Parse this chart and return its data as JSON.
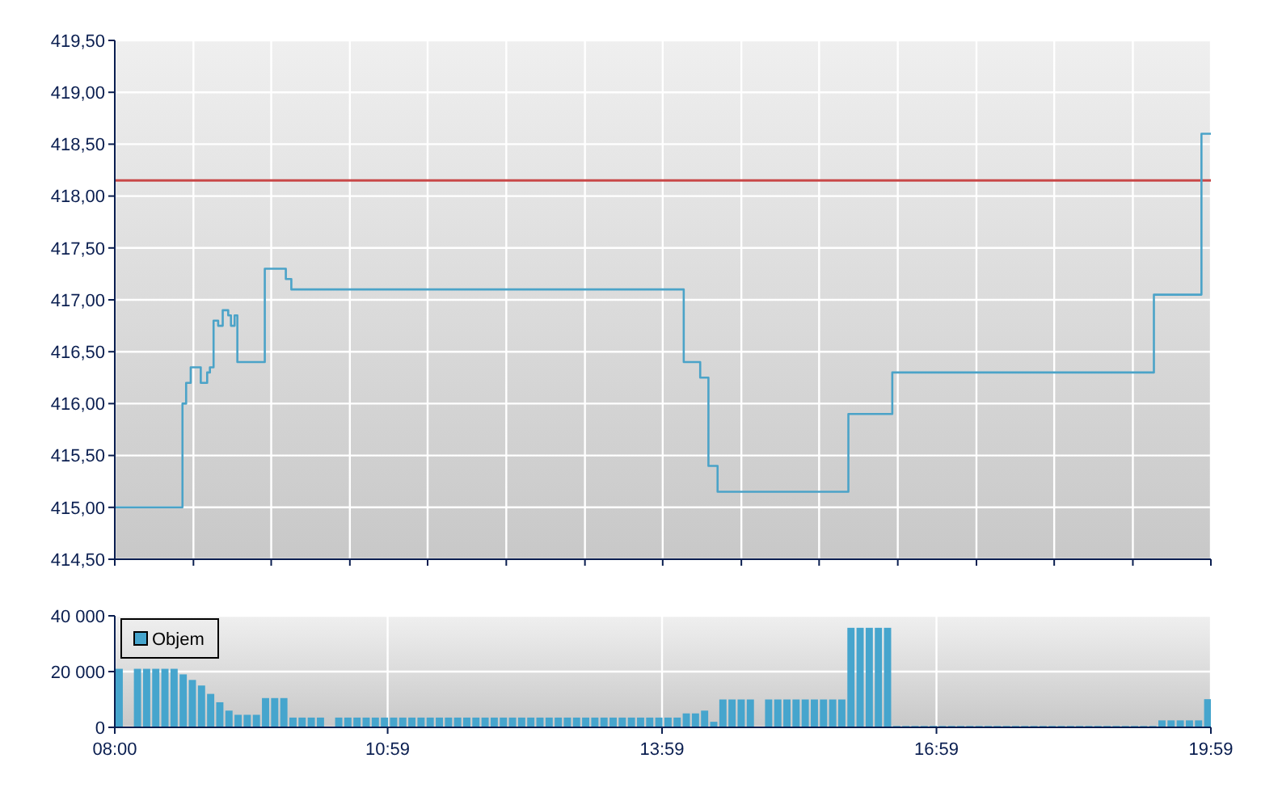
{
  "chart_data": [
    {
      "type": "step",
      "xlim": [
        8,
        19.983
      ],
      "xticks": [
        {
          "value": 8,
          "label": null
        },
        {
          "value": 8.86,
          "label": null
        },
        {
          "value": 9.71,
          "label": null
        },
        {
          "value": 10.57,
          "label": null
        },
        {
          "value": 11.42,
          "label": null
        },
        {
          "value": 12.28,
          "label": null
        },
        {
          "value": 13.14,
          "label": null
        },
        {
          "value": 13.99,
          "label": null
        },
        {
          "value": 14.85,
          "label": null
        },
        {
          "value": 15.7,
          "label": null
        },
        {
          "value": 16.56,
          "label": null
        },
        {
          "value": 17.42,
          "label": null
        },
        {
          "value": 18.27,
          "label": null
        },
        {
          "value": 19.13,
          "label": null
        },
        {
          "value": 19.983,
          "label": null
        }
      ],
      "ylim": [
        414.5,
        419.5
      ],
      "yticks": [
        {
          "value": 414.5,
          "label": "414,50"
        },
        {
          "value": 415,
          "label": "415,00"
        },
        {
          "value": 415.5,
          "label": "415,50"
        },
        {
          "value": 416,
          "label": "416,00"
        },
        {
          "value": 416.5,
          "label": "416,50"
        },
        {
          "value": 417,
          "label": "417,00"
        },
        {
          "value": 417.5,
          "label": "417,50"
        },
        {
          "value": 418,
          "label": "418,00"
        },
        {
          "value": 418.5,
          "label": "418,50"
        },
        {
          "value": 419,
          "label": "419,00"
        },
        {
          "value": 419.5,
          "label": "419,50"
        }
      ],
      "grid": true,
      "tick_labels": "y",
      "ref_lines": [
        {
          "axis": "y",
          "value": 418.15,
          "color": "#c84848"
        }
      ],
      "series": [
        {
          "color": "#4ba3c8",
          "x": [
            8,
            8.69,
            8.74,
            8.78,
            8.83,
            8.94,
            9.01,
            9.04,
            9.08,
            9.13,
            9.18,
            9.24,
            9.27,
            9.31,
            9.34,
            9.64,
            9.87,
            9.89,
            9.93,
            14.22,
            14.4,
            14.45,
            14.49,
            14.59,
            16.02,
            16.5,
            19.36,
            19.88,
            19.983
          ],
          "values": [
            415,
            415,
            416,
            416.2,
            416.35,
            416.2,
            416.3,
            416.35,
            416.8,
            416.75,
            416.9,
            416.85,
            416.75,
            416.85,
            416.4,
            417.3,
            417.2,
            417.2,
            417.1,
            416.4,
            416.25,
            416.25,
            415.4,
            415.15,
            415.9,
            416.3,
            417.05,
            418.6,
            418.6
          ]
        }
      ]
    },
    {
      "type": "bar",
      "xlim": [
        8,
        19.983
      ],
      "xticks": [
        {
          "value": 8,
          "label": "08:00"
        },
        {
          "value": 10.983,
          "label": "10:59"
        },
        {
          "value": 13.983,
          "label": "13:59"
        },
        {
          "value": 16.983,
          "label": "16:59"
        },
        {
          "value": 19.983,
          "label": "19:59"
        }
      ],
      "ylim": [
        0,
        40000
      ],
      "yticks": [
        {
          "value": 0,
          "label": "0"
        },
        {
          "value": 20000,
          "label": "20 000"
        },
        {
          "value": 40000,
          "label": "40 000"
        }
      ],
      "grid": true,
      "legend": "top left",
      "series": [
        {
          "name": "Objem",
          "color": "#46a5cd",
          "x": [
            8.05,
            8.15,
            8.25,
            8.35,
            8.45,
            8.55,
            8.65,
            8.75,
            8.85,
            8.95,
            9.05,
            9.15,
            9.25,
            9.35,
            9.45,
            9.55,
            9.65,
            9.75,
            9.85,
            9.95,
            10.05,
            10.15,
            10.25,
            10.35,
            10.45,
            10.55,
            10.65,
            10.75,
            10.85,
            10.95,
            11.05,
            11.15,
            11.25,
            11.35,
            11.45,
            11.55,
            11.65,
            11.75,
            11.85,
            11.95,
            12.05,
            12.15,
            12.25,
            12.35,
            12.45,
            12.55,
            12.65,
            12.75,
            12.85,
            12.95,
            13.05,
            13.15,
            13.25,
            13.35,
            13.45,
            13.55,
            13.65,
            13.75,
            13.85,
            13.95,
            14.05,
            14.15,
            14.25,
            14.35,
            14.45,
            14.55,
            14.65,
            14.75,
            14.85,
            14.95,
            15.05,
            15.15,
            15.25,
            15.35,
            15.45,
            15.55,
            15.65,
            15.75,
            15.85,
            15.95,
            16.05,
            16.15,
            16.25,
            16.35,
            16.45,
            16.55,
            16.65,
            16.75,
            16.85,
            16.95,
            17.05,
            17.15,
            17.25,
            17.35,
            17.45,
            17.55,
            17.65,
            17.75,
            17.85,
            17.95,
            18.05,
            18.15,
            18.25,
            18.35,
            18.45,
            18.55,
            18.65,
            18.75,
            18.85,
            18.95,
            19.05,
            19.15,
            19.25,
            19.35,
            19.45,
            19.55,
            19.65,
            19.75,
            19.85,
            19.95
          ],
          "values": [
            21000,
            null,
            21000,
            21000,
            21000,
            21000,
            21000,
            19000,
            17000,
            15000,
            12000,
            9000,
            6000,
            4500,
            4500,
            4500,
            10500,
            10500,
            10500,
            3500,
            3500,
            3500,
            3500,
            null,
            3500,
            3500,
            3500,
            3500,
            3500,
            3500,
            3500,
            3500,
            3500,
            3500,
            3500,
            3500,
            3500,
            3500,
            3500,
            3500,
            3500,
            3500,
            3500,
            3500,
            3500,
            3500,
            3500,
            3500,
            3500,
            3500,
            3500,
            3500,
            3500,
            3500,
            3500,
            3500,
            3500,
            3500,
            3500,
            3500,
            3500,
            3500,
            5000,
            5000,
            6000,
            2000,
            10000,
            10000,
            10000,
            10000,
            null,
            10000,
            10000,
            10000,
            10000,
            10000,
            10000,
            10000,
            10000,
            10000,
            35700,
            35700,
            35700,
            35700,
            35700,
            500,
            500,
            500,
            500,
            500,
            500,
            500,
            500,
            500,
            500,
            500,
            500,
            500,
            500,
            500,
            500,
            500,
            500,
            500,
            500,
            500,
            500,
            500,
            500,
            500,
            500,
            500,
            500,
            500,
            2500,
            2500,
            2500,
            2500,
            2500,
            10100
          ]
        }
      ]
    }
  ]
}
